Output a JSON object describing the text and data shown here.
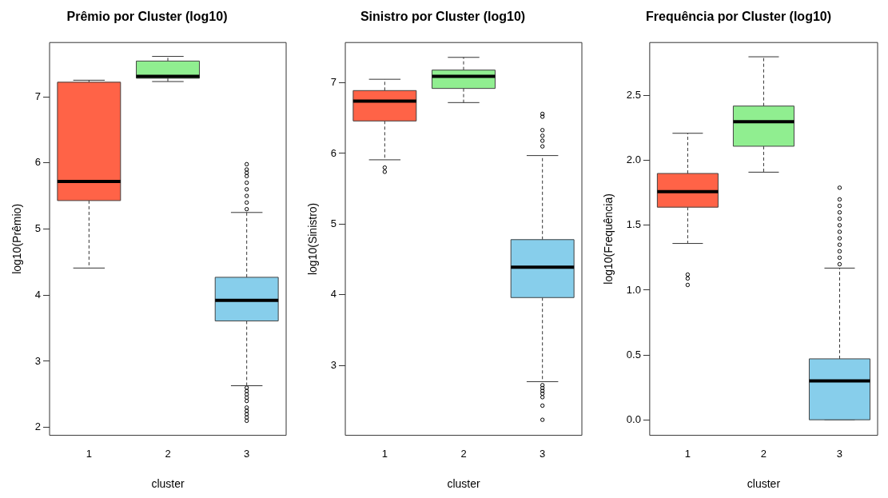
{
  "chart_data": [
    {
      "type": "box",
      "title": "Prêmio por Cluster (log10)",
      "xlabel": "cluster",
      "ylabel": "log10(Prêmio)",
      "categories": [
        "1",
        "2",
        "3"
      ],
      "colors": [
        "#ff6347",
        "#90ee90",
        "#87ceeb"
      ],
      "ylim": [
        1.88,
        7.82
      ],
      "yticks": [
        2,
        3,
        4,
        5,
        6,
        7
      ],
      "grid": false,
      "boxes": [
        {
          "low": 4.41,
          "q1": 5.43,
          "median": 5.72,
          "q3": 7.22,
          "high": 7.25
        },
        {
          "low": 7.23,
          "q1": 7.28,
          "median": 7.31,
          "q3": 7.54,
          "high": 7.61
        },
        {
          "low": 2.63,
          "q1": 3.61,
          "median": 3.92,
          "q3": 4.27,
          "high": 5.25,
          "outliers": [
            5.3,
            5.4,
            5.5,
            5.6,
            5.7,
            5.8,
            5.85,
            5.9,
            5.98,
            2.6,
            2.55,
            2.5,
            2.45,
            2.4,
            2.3,
            2.25,
            2.2,
            2.15,
            2.1
          ]
        }
      ]
    },
    {
      "type": "box",
      "title": "Sinistro por Cluster (log10)",
      "xlabel": "cluster",
      "ylabel": "log10(Sinistro)",
      "categories": [
        "1",
        "2",
        "3"
      ],
      "colors": [
        "#ff6347",
        "#90ee90",
        "#87ceeb"
      ],
      "ylim": [
        2.01,
        7.57
      ],
      "yticks": [
        3,
        4,
        5,
        6,
        7
      ],
      "grid": false,
      "boxes": [
        {
          "low": 5.91,
          "q1": 6.46,
          "median": 6.74,
          "q3": 6.89,
          "high": 7.05,
          "outliers": [
            5.8,
            5.74
          ]
        },
        {
          "low": 6.72,
          "q1": 6.92,
          "median": 7.09,
          "q3": 7.18,
          "high": 7.36
        },
        {
          "low": 2.77,
          "q1": 3.96,
          "median": 4.39,
          "q3": 4.78,
          "high": 5.97,
          "outliers": [
            6.56,
            6.52,
            6.33,
            6.25,
            6.18,
            6.1,
            2.72,
            2.68,
            2.64,
            2.6,
            2.55,
            2.43,
            2.23
          ]
        }
      ]
    },
    {
      "type": "box",
      "title": "Frequência por Cluster (log10)",
      "xlabel": "cluster",
      "ylabel": "log10(Frequência)",
      "categories": [
        "1",
        "2",
        "3"
      ],
      "colors": [
        "#ff6347",
        "#90ee90",
        "#87ceeb"
      ],
      "ylim": [
        -0.12,
        2.91
      ],
      "yticks": [
        {
          "value": 0,
          "label": "0.0"
        },
        {
          "value": 0.5,
          "label": "0.5"
        },
        {
          "value": 1,
          "label": "1.0"
        },
        {
          "value": 1.5,
          "label": "1.5"
        },
        {
          "value": 2,
          "label": "2.0"
        },
        {
          "value": 2.5,
          "label": "2.5"
        }
      ],
      "grid": false,
      "boxes": [
        {
          "low": 1.36,
          "q1": 1.64,
          "median": 1.76,
          "q3": 1.9,
          "high": 2.21,
          "outliers": [
            1.12,
            1.09,
            1.04
          ]
        },
        {
          "low": 1.91,
          "q1": 2.11,
          "median": 2.3,
          "q3": 2.42,
          "high": 2.8
        },
        {
          "low": 0,
          "q1": 0,
          "median": 0.3,
          "q3": 0.47,
          "high": 1.17,
          "outliers": [
            1.2,
            1.25,
            1.3,
            1.35,
            1.4,
            1.45,
            1.5,
            1.55,
            1.6,
            1.65,
            1.7,
            1.79
          ]
        }
      ]
    }
  ]
}
